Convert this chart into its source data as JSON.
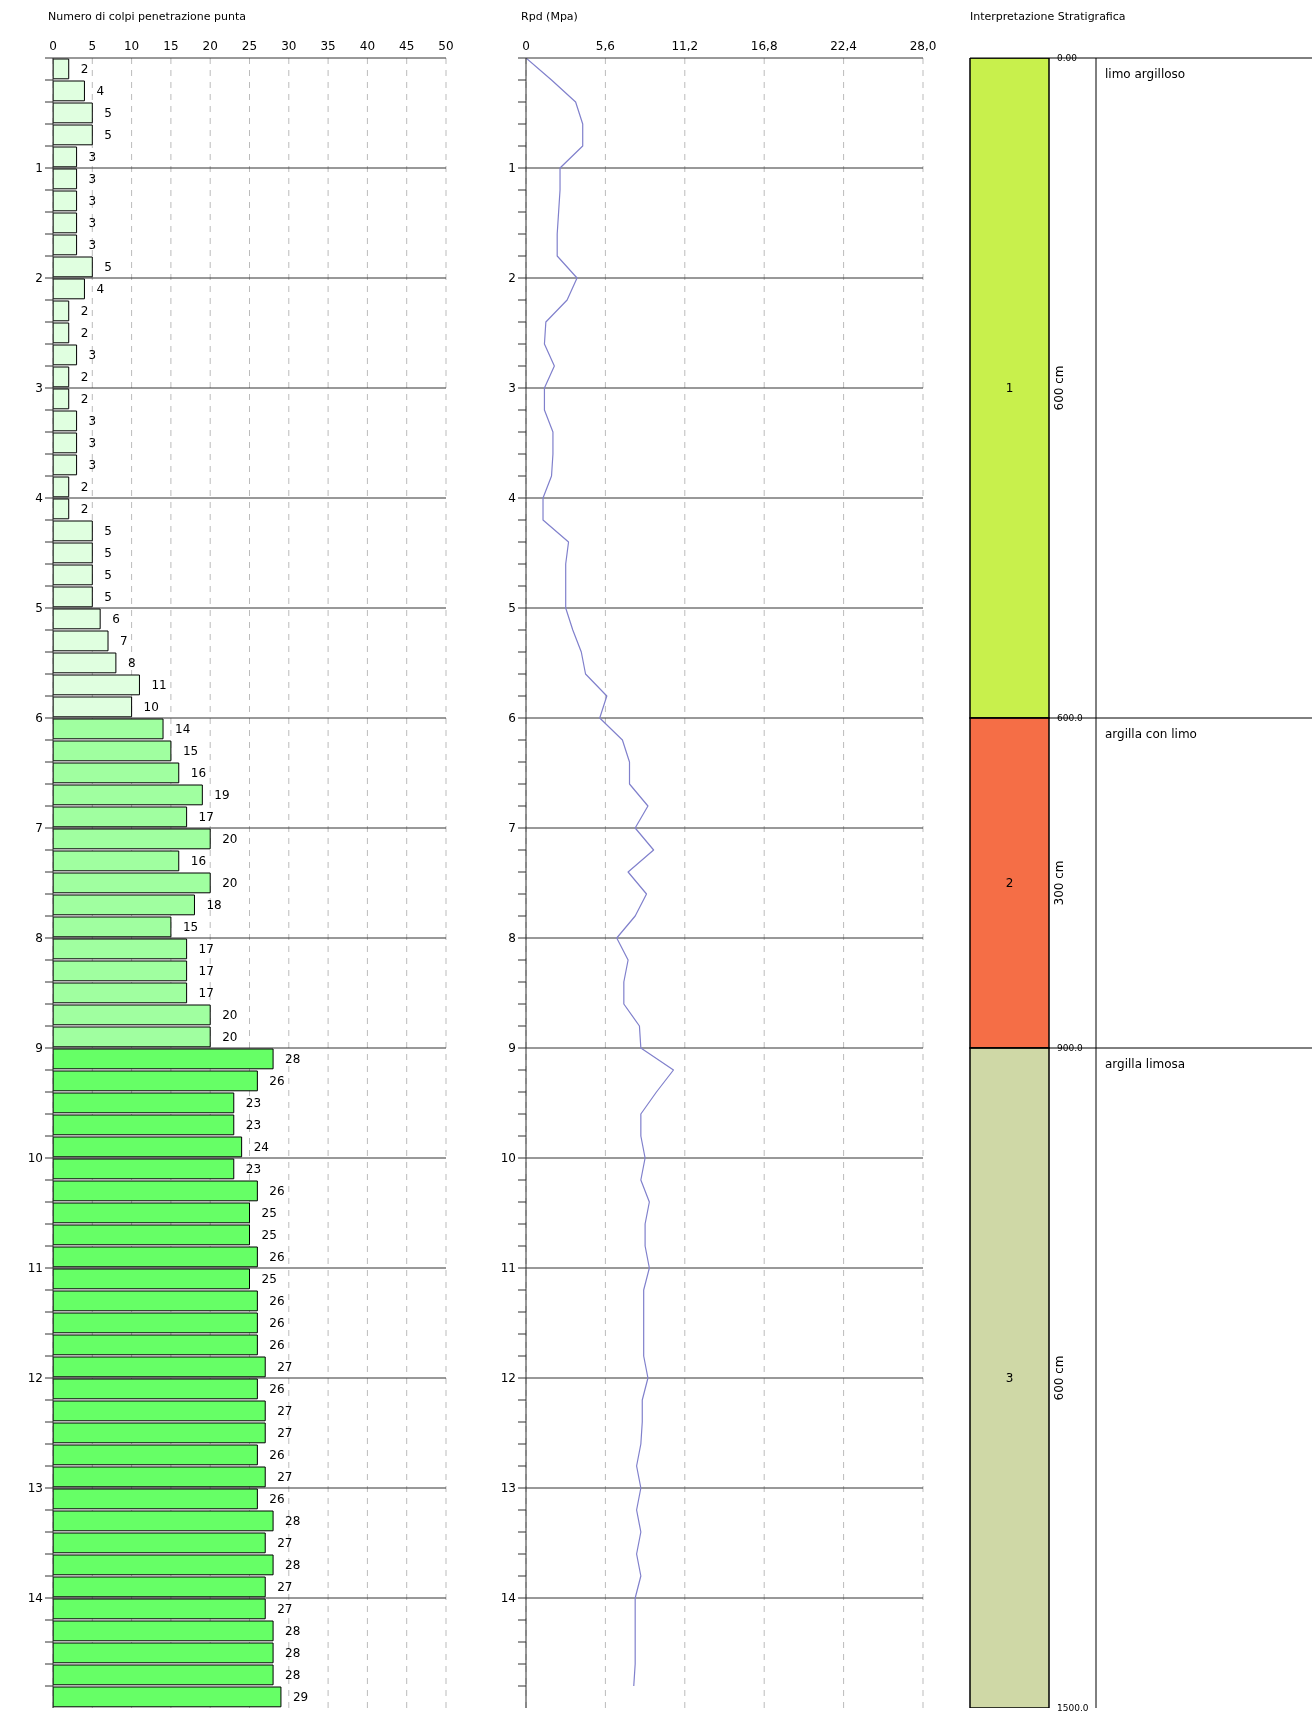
{
  "chart_data": [
    {
      "type": "bar",
      "orientation": "horizontal",
      "xlabel": "Numero di colpi penetrazione punta",
      "x": [
        0.1,
        0.3,
        0.5,
        0.7,
        0.9,
        1.1,
        1.3,
        1.5,
        1.7,
        1.9,
        2.1,
        2.3,
        2.5,
        2.7,
        2.9,
        3.1,
        3.3,
        3.5,
        3.7,
        3.9,
        4.1,
        4.3,
        4.5,
        4.7,
        4.9,
        5.1,
        5.3,
        5.5,
        5.7,
        5.9,
        6.1,
        6.3,
        6.5,
        6.7,
        6.9,
        7.1,
        7.3,
        7.5,
        7.7,
        7.9,
        8.1,
        8.3,
        8.5,
        8.7,
        8.9,
        9.1,
        9.3,
        9.5,
        9.7,
        9.9,
        10.1,
        10.3,
        10.5,
        10.7,
        10.9,
        11.1,
        11.3,
        11.5,
        11.7,
        11.9,
        12.1,
        12.3,
        12.5,
        12.7,
        12.9,
        13.1,
        13.3,
        13.5,
        13.7,
        13.9,
        14.1,
        14.3,
        14.5,
        14.7,
        14.9
      ],
      "values": [
        2,
        4,
        5,
        5,
        3,
        3,
        3,
        3,
        3,
        5,
        4,
        2,
        2,
        3,
        2,
        2,
        3,
        3,
        3,
        2,
        2,
        5,
        5,
        5,
        5,
        6,
        7,
        8,
        11,
        10,
        14,
        15,
        16,
        19,
        17,
        20,
        16,
        20,
        18,
        15,
        17,
        17,
        17,
        20,
        20,
        28,
        26,
        23,
        23,
        24,
        23,
        26,
        25,
        25,
        26,
        25,
        26,
        26,
        26,
        27,
        26,
        27,
        27,
        26,
        27,
        26,
        28,
        27,
        28,
        27,
        27,
        28,
        28,
        28,
        29
      ],
      "colors": [
        "#e0ffe0",
        "#e0ffe0",
        "#e0ffe0",
        "#e0ffe0",
        "#e0ffe0",
        "#e0ffe0",
        "#e0ffe0",
        "#e0ffe0",
        "#e0ffe0",
        "#e0ffe0",
        "#e0ffe0",
        "#e0ffe0",
        "#e0ffe0",
        "#e0ffe0",
        "#e0ffe0",
        "#e0ffe0",
        "#e0ffe0",
        "#e0ffe0",
        "#e0ffe0",
        "#e0ffe0",
        "#e0ffe0",
        "#e0ffe0",
        "#e0ffe0",
        "#e0ffe0",
        "#e0ffe0",
        "#e0ffe0",
        "#e0ffe0",
        "#e0ffe0",
        "#e0ffe0",
        "#e0ffe0",
        "#a0ffa0",
        "#a0ffa0",
        "#a0ffa0",
        "#a0ffa0",
        "#a0ffa0",
        "#a0ffa0",
        "#a0ffa0",
        "#a0ffa0",
        "#a0ffa0",
        "#a0ffa0",
        "#a0ffa0",
        "#a0ffa0",
        "#a0ffa0",
        "#a0ffa0",
        "#a0ffa0",
        "#66ff66",
        "#66ff66",
        "#66ff66",
        "#66ff66",
        "#66ff66",
        "#66ff66",
        "#66ff66",
        "#66ff66",
        "#66ff66",
        "#66ff66",
        "#66ff66",
        "#66ff66",
        "#66ff66",
        "#66ff66",
        "#66ff66",
        "#66ff66",
        "#66ff66",
        "#66ff66",
        "#66ff66",
        "#66ff66",
        "#66ff66",
        "#66ff66",
        "#66ff66",
        "#66ff66",
        "#66ff66",
        "#66ff66",
        "#66ff66",
        "#66ff66",
        "#66ff66",
        "#66ff66"
      ],
      "data_labels": true,
      "xlim": [
        0,
        50
      ],
      "xticks": [
        0,
        5,
        10,
        15,
        20,
        25,
        30,
        35,
        40,
        45,
        50
      ],
      "ylim": [
        15,
        0
      ],
      "yticks": [
        {
          "value": 0,
          "label": null
        },
        {
          "value": 0.2,
          "label": null
        },
        {
          "value": 0.4,
          "label": null
        },
        {
          "value": 0.6,
          "label": null
        },
        {
          "value": 0.8,
          "label": null
        },
        1,
        {
          "value": 1.2,
          "label": null
        },
        {
          "value": 1.4,
          "label": null
        },
        {
          "value": 1.6,
          "label": null
        },
        {
          "value": 1.8,
          "label": null
        },
        2,
        {
          "value": 2.2,
          "label": null
        },
        {
          "value": 2.4,
          "label": null
        },
        {
          "value": 2.6,
          "label": null
        },
        {
          "value": 2.8,
          "label": null
        },
        3,
        {
          "value": 3.2,
          "label": null
        },
        {
          "value": 3.4,
          "label": null
        },
        {
          "value": 3.6,
          "label": null
        },
        {
          "value": 3.8,
          "label": null
        },
        4,
        {
          "value": 4.2,
          "label": null
        },
        {
          "value": 4.4,
          "label": null
        },
        {
          "value": 4.6,
          "label": null
        },
        {
          "value": 4.8,
          "label": null
        },
        5,
        {
          "value": 5.2,
          "label": null
        },
        {
          "value": 5.4,
          "label": null
        },
        {
          "value": 5.6,
          "label": null
        },
        {
          "value": 5.8,
          "label": null
        },
        6,
        {
          "value": 6.2,
          "label": null
        },
        {
          "value": 6.4,
          "label": null
        },
        {
          "value": 6.6,
          "label": null
        },
        {
          "value": 6.8,
          "label": null
        },
        7,
        {
          "value": 7.2,
          "label": null
        },
        {
          "value": 7.4,
          "label": null
        },
        {
          "value": 7.6,
          "label": null
        },
        {
          "value": 7.8,
          "label": null
        },
        8,
        {
          "value": 8.2,
          "label": null
        },
        {
          "value": 8.4,
          "label": null
        },
        {
          "value": 8.6,
          "label": null
        },
        {
          "value": 8.8,
          "label": null
        },
        9,
        {
          "value": 9.2,
          "label": null
        },
        {
          "value": 9.4,
          "label": null
        },
        {
          "value": 9.6,
          "label": null
        },
        {
          "value": 9.8,
          "label": null
        },
        10,
        {
          "value": 10.2,
          "label": null
        },
        {
          "value": 10.4,
          "label": null
        },
        {
          "value": 10.6,
          "label": null
        },
        {
          "value": 10.8,
          "label": null
        },
        11,
        {
          "value": 11.2,
          "label": null
        },
        {
          "value": 11.4,
          "label": null
        },
        {
          "value": 11.6,
          "label": null
        },
        {
          "value": 11.8,
          "label": null
        },
        12,
        {
          "value": 12.2,
          "label": null
        },
        {
          "value": 12.4,
          "label": null
        },
        {
          "value": 12.6,
          "label": null
        },
        {
          "value": 12.8,
          "label": null
        },
        13,
        {
          "value": 13.2,
          "label": null
        },
        {
          "value": 13.4,
          "label": null
        },
        {
          "value": 13.6,
          "label": null
        },
        {
          "value": 13.8,
          "label": null
        },
        14,
        {
          "value": 14.2,
          "label": null
        },
        {
          "value": 14.4,
          "label": null
        },
        {
          "value": 14.6,
          "label": null
        },
        {
          "value": 14.8,
          "label": null
        }
      ],
      "grid": true
    },
    {
      "type": "line",
      "orientation": "horizontal",
      "xlabel": "Rpd (Mpa)",
      "series": [
        {
          "color": "#8080cc",
          "x": [
            0,
            0.2,
            0.4,
            0.6,
            0.8,
            1,
            1.2,
            1.4,
            1.6,
            1.8,
            2,
            2.2,
            2.4,
            2.6,
            2.8,
            3,
            3.2,
            3.4,
            3.6,
            3.8,
            4,
            4.2,
            4.4,
            4.6,
            4.8,
            5,
            5.2,
            5.4,
            5.6,
            5.8,
            6,
            6.2,
            6.4,
            6.6,
            6.8,
            7,
            7.2,
            7.4,
            7.6,
            7.8,
            8,
            8.2,
            8.4,
            8.6,
            8.8,
            9,
            9.2,
            9.4,
            9.6,
            9.8,
            10,
            10.2,
            10.4,
            10.6,
            10.8,
            11,
            11.2,
            11.4,
            11.6,
            11.8,
            12,
            12.2,
            12.4,
            12.6,
            12.8,
            13,
            13.2,
            13.4,
            13.6,
            13.8,
            14,
            14.2,
            14.4,
            14.6,
            14.8
          ],
          "values": [
            0,
            1.8,
            3.5,
            4.0,
            4.0,
            2.4,
            2.4,
            2.3,
            2.2,
            2.2,
            3.6,
            2.9,
            1.4,
            1.3,
            2.0,
            1.3,
            1.3,
            1.9,
            1.9,
            1.8,
            1.2,
            1.2,
            3.0,
            2.8,
            2.8,
            2.8,
            3.3,
            3.9,
            4.2,
            5.7,
            5.2,
            6.8,
            7.3,
            7.3,
            8.6,
            7.7,
            9.0,
            7.2,
            8.5,
            7.7,
            6.4,
            7.2,
            6.9,
            6.9,
            8.0,
            8.1,
            10.4,
            9.2,
            8.1,
            8.1,
            8.4,
            8.1,
            8.7,
            8.4,
            8.4,
            8.7,
            8.3,
            8.3,
            8.3,
            8.3,
            8.6,
            8.2,
            8.2,
            8.1,
            7.8,
            8.1,
            7.8,
            8.1,
            7.8,
            8.1,
            7.7,
            7.7,
            7.7,
            7.7,
            7.6
          ]
        }
      ],
      "marker": "none",
      "line_style": "solid",
      "xlim": [
        0,
        28
      ],
      "xticks": [
        0,
        {
          "value": 5.6,
          "label": "5,6"
        },
        {
          "value": 11.2,
          "label": "11,2"
        },
        {
          "value": 16.8,
          "label": "16,8"
        },
        {
          "value": 22.4,
          "label": "22,4"
        },
        {
          "value": 28,
          "label": "28,0"
        }
      ],
      "ylim": [
        15,
        0
      ],
      "yticks": [
        {
          "value": 0,
          "label": null
        },
        {
          "value": 0.2,
          "label": null
        },
        {
          "value": 0.4,
          "label": null
        },
        {
          "value": 0.6,
          "label": null
        },
        {
          "value": 0.8,
          "label": null
        },
        1,
        {
          "value": 1.2,
          "label": null
        },
        {
          "value": 1.4,
          "label": null
        },
        {
          "value": 1.6,
          "label": null
        },
        {
          "value": 1.8,
          "label": null
        },
        2,
        {
          "value": 2.2,
          "label": null
        },
        {
          "value": 2.4,
          "label": null
        },
        {
          "value": 2.6,
          "label": null
        },
        {
          "value": 2.8,
          "label": null
        },
        3,
        {
          "value": 3.2,
          "label": null
        },
        {
          "value": 3.4,
          "label": null
        },
        {
          "value": 3.6,
          "label": null
        },
        {
          "value": 3.8,
          "label": null
        },
        4,
        {
          "value": 4.2,
          "label": null
        },
        {
          "value": 4.4,
          "label": null
        },
        {
          "value": 4.6,
          "label": null
        },
        {
          "value": 4.8,
          "label": null
        },
        5,
        {
          "value": 5.2,
          "label": null
        },
        {
          "value": 5.4,
          "label": null
        },
        {
          "value": 5.6,
          "label": null
        },
        {
          "value": 5.8,
          "label": null
        },
        6,
        {
          "value": 6.2,
          "label": null
        },
        {
          "value": 6.4,
          "label": null
        },
        {
          "value": 6.6,
          "label": null
        },
        {
          "value": 6.8,
          "label": null
        },
        7,
        {
          "value": 7.2,
          "label": null
        },
        {
          "value": 7.4,
          "label": null
        },
        {
          "value": 7.6,
          "label": null
        },
        {
          "value": 7.8,
          "label": null
        },
        8,
        {
          "value": 8.2,
          "label": null
        },
        {
          "value": 8.4,
          "label": null
        },
        {
          "value": 8.6,
          "label": null
        },
        {
          "value": 8.8,
          "label": null
        },
        9,
        {
          "value": 9.2,
          "label": null
        },
        {
          "value": 9.4,
          "label": null
        },
        {
          "value": 9.6,
          "label": null
        },
        {
          "value": 9.8,
          "label": null
        },
        10,
        {
          "value": 10.2,
          "label": null
        },
        {
          "value": 10.4,
          "label": null
        },
        {
          "value": 10.6,
          "label": null
        },
        {
          "value": 10.8,
          "label": null
        },
        11,
        {
          "value": 11.2,
          "label": null
        },
        {
          "value": 11.4,
          "label": null
        },
        {
          "value": 11.6,
          "label": null
        },
        {
          "value": 11.8,
          "label": null
        },
        12,
        {
          "value": 12.2,
          "label": null
        },
        {
          "value": 12.4,
          "label": null
        },
        {
          "value": 12.6,
          "label": null
        },
        {
          "value": 12.8,
          "label": null
        },
        13,
        {
          "value": 13.2,
          "label": null
        },
        {
          "value": 13.4,
          "label": null
        },
        {
          "value": 13.6,
          "label": null
        },
        {
          "value": 13.8,
          "label": null
        },
        14,
        {
          "value": 14.2,
          "label": null
        },
        {
          "value": 14.4,
          "label": null
        },
        {
          "value": 14.6,
          "label": null
        },
        {
          "value": 14.8,
          "label": null
        }
      ],
      "grid": true
    },
    {
      "type": "bar",
      "stacked": true,
      "title": "Interpretazione Stratigrafica",
      "categories": [
        null
      ],
      "series": [
        {
          "name": "limo argilloso",
          "color": "#c8f04c",
          "values": [
            600
          ],
          "value_labels": [
            "600 cm"
          ]
        },
        {
          "name": "argilla con limo",
          "color": "#f56e46",
          "values": [
            300
          ],
          "value_labels": [
            "300 cm"
          ]
        },
        {
          "name": "argilla limosa",
          "color": "#cfd8a6",
          "values": [
            600
          ],
          "value_labels": [
            "600 cm"
          ]
        }
      ],
      "ylim": [
        1500,
        0
      ],
      "yticks": [
        {
          "value": 0,
          "label": "0.00"
        },
        {
          "value": 600,
          "label": "600.0"
        },
        {
          "value": 900,
          "label": "900.0"
        },
        {
          "value": 1500,
          "label": "1500.0"
        }
      ],
      "annotations": [
        "1",
        "2",
        "3"
      ]
    }
  ]
}
